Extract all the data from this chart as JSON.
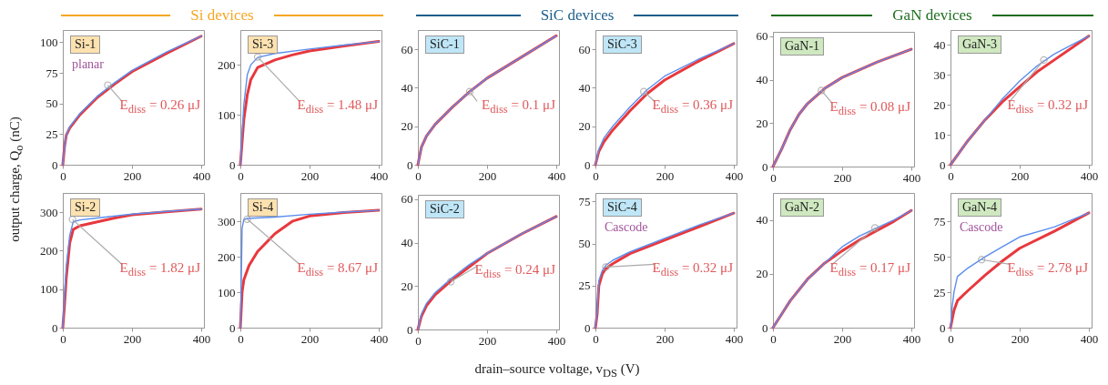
{
  "chart_data": [
    {
      "type": "line",
      "title": "Si devices",
      "ylabel": "output charge, Q$_{o}$ (nC)",
      "xlim": [
        0,
        408
      ],
      "xticks": [
        0,
        200,
        400
      ],
      "ylim": [
        0,
        110
      ],
      "yticks": [
        0,
        25,
        50,
        75,
        100
      ],
      "annotations": [
        "Si-1",
        "planar",
        {
          "text": "E$_{diss}$ = 0.26 μJ",
          "x": 130,
          "y": 65
        }
      ],
      "series": [
        {
          "color": "#e8383d",
          "x": [
            0,
            5,
            10,
            20,
            50,
            100,
            150,
            200,
            300,
            400
          ],
          "values": [
            0,
            15,
            24,
            30,
            41,
            55,
            66,
            76,
            91,
            105
          ]
        },
        {
          "color": "#5b8def",
          "x": [
            0,
            5,
            10,
            20,
            50,
            100,
            150,
            200,
            300,
            400
          ],
          "values": [
            0,
            15,
            24,
            31,
            42,
            56,
            67,
            77,
            92,
            105
          ]
        }
      ]
    },
    {
      "type": "line",
      "xlim": [
        0,
        408
      ],
      "xticks": [
        0,
        200,
        400
      ],
      "ylim": [
        0,
        270
      ],
      "yticks": [
        0,
        100,
        200
      ],
      "annotations": [
        "Si-3",
        {
          "text": "E$_{diss}$ = 1.48 μJ",
          "x": 50,
          "y": 216
        }
      ],
      "series": [
        {
          "color": "#e8383d",
          "x": [
            0,
            10,
            20,
            30,
            50,
            100,
            150,
            200,
            300,
            400
          ],
          "values": [
            0,
            90,
            140,
            170,
            195,
            210,
            220,
            228,
            238,
            247
          ]
        },
        {
          "color": "#5b8def",
          "x": [
            0,
            5,
            10,
            20,
            30,
            50,
            100,
            200,
            300,
            400
          ],
          "values": [
            0,
            60,
            120,
            180,
            200,
            215,
            223,
            232,
            240,
            247
          ]
        }
      ]
    },
    {
      "type": "line",
      "title": "SiC devices",
      "xlim": [
        0,
        408
      ],
      "xticks": [
        0,
        200,
        400
      ],
      "ylim": [
        0,
        70
      ],
      "yticks": [
        0,
        20,
        40,
        60
      ],
      "annotations": [
        "SiC-1",
        {
          "text": "E$_{diss}$ = 0.1 μJ",
          "x": 150,
          "y": 38
        }
      ],
      "series": [
        {
          "color": "#e8383d",
          "x": [
            0,
            10,
            25,
            50,
            100,
            150,
            200,
            300,
            400
          ],
          "values": [
            0,
            9,
            15,
            21,
            30,
            38,
            45,
            56,
            67
          ]
        },
        {
          "color": "#5b8def",
          "x": [
            0,
            10,
            25,
            50,
            100,
            150,
            200,
            300,
            400
          ],
          "values": [
            0,
            9,
            15,
            21,
            30,
            38,
            45,
            56,
            67
          ]
        }
      ]
    },
    {
      "type": "line",
      "xlim": [
        0,
        408
      ],
      "xticks": [
        0,
        200,
        400
      ],
      "ylim": [
        0,
        70
      ],
      "yticks": [
        0,
        20,
        40,
        60
      ],
      "annotations": [
        "SiC-3",
        {
          "text": "E$_{diss}$ = 0.36 μJ",
          "x": 140,
          "y": 38
        }
      ],
      "series": [
        {
          "color": "#e8383d",
          "x": [
            0,
            10,
            25,
            50,
            100,
            150,
            200,
            300,
            400
          ],
          "values": [
            0,
            7,
            12,
            18,
            28,
            37,
            44,
            54,
            63
          ]
        },
        {
          "color": "#5b8def",
          "x": [
            0,
            10,
            25,
            50,
            100,
            150,
            200,
            300,
            400
          ],
          "values": [
            0,
            8,
            14,
            20,
            30,
            39,
            46,
            55,
            63
          ]
        }
      ]
    },
    {
      "type": "line",
      "title": "GaN devices",
      "xlim": [
        0,
        408
      ],
      "xticks": [
        0,
        200,
        400
      ],
      "ylim": [
        0,
        62
      ],
      "yticks": [
        0,
        20,
        40,
        60
      ],
      "annotations": [
        "GaN-1",
        {
          "text": "E$_{diss}$ = 0.08 μJ",
          "x": 140,
          "y": 35
        }
      ],
      "series": [
        {
          "color": "#e8383d",
          "x": [
            0,
            25,
            50,
            75,
            100,
            150,
            200,
            300,
            400
          ],
          "values": [
            0,
            8,
            17,
            24,
            29,
            36,
            41,
            48,
            54
          ]
        },
        {
          "color": "#5b8def",
          "x": [
            0,
            25,
            50,
            75,
            100,
            150,
            200,
            300,
            400
          ],
          "values": [
            0,
            8,
            17,
            24,
            29,
            36,
            41,
            48,
            54
          ]
        }
      ]
    },
    {
      "type": "line",
      "xlim": [
        0,
        408
      ],
      "xticks": [
        0,
        200,
        400
      ],
      "ylim": [
        0,
        45
      ],
      "yticks": [
        0,
        10,
        20,
        30,
        40
      ],
      "annotations": [
        "GaN-3",
        {
          "text": "E$_{diss}$ = 0.32 μJ",
          "x": 270,
          "y": 35
        }
      ],
      "series": [
        {
          "color": "#e8383d",
          "x": [
            0,
            25,
            50,
            100,
            150,
            200,
            250,
            300,
            350,
            400
          ],
          "values": [
            0,
            4,
            8,
            15,
            21,
            26,
            31,
            35,
            39,
            43
          ]
        },
        {
          "color": "#5b8def",
          "x": [
            0,
            25,
            50,
            100,
            150,
            200,
            250,
            300,
            350,
            400
          ],
          "values": [
            0,
            4,
            8,
            15,
            22,
            28,
            33,
            37,
            40,
            43
          ]
        }
      ]
    },
    {
      "type": "line",
      "xlim": [
        0,
        408
      ],
      "xticks": [
        0,
        200,
        400
      ],
      "ylim": [
        0,
        350
      ],
      "yticks": [
        0,
        100,
        200,
        300
      ],
      "annotations": [
        "Si-2",
        {
          "text": "E$_{diss}$ = 1.82 μJ",
          "x": 28,
          "y": 281
        }
      ],
      "series": [
        {
          "color": "#e8383d",
          "x": [
            0,
            5,
            10,
            20,
            30,
            50,
            100,
            150,
            200,
            300,
            400
          ],
          "values": [
            0,
            60,
            130,
            220,
            255,
            265,
            275,
            285,
            293,
            301,
            308
          ]
        },
        {
          "color": "#5b8def",
          "x": [
            0,
            5,
            10,
            20,
            30,
            50,
            100,
            200,
            300,
            400
          ],
          "values": [
            0,
            80,
            160,
            240,
            275,
            280,
            285,
            295,
            302,
            308
          ]
        }
      ]
    },
    {
      "type": "line",
      "xlim": [
        0,
        408
      ],
      "xticks": [
        0,
        200,
        400
      ],
      "ylim": [
        0,
        380
      ],
      "yticks": [
        0,
        100,
        200,
        300
      ],
      "annotations": [
        "Si-4",
        {
          "text": "E$_{diss}$ = 8.67 μJ",
          "x": 20,
          "y": 306
        }
      ],
      "series": [
        {
          "color": "#e8383d",
          "x": [
            0,
            5,
            10,
            25,
            50,
            100,
            150,
            200,
            300,
            400
          ],
          "values": [
            0,
            100,
            135,
            175,
            215,
            265,
            300,
            315,
            325,
            331
          ]
        },
        {
          "color": "#5b8def",
          "x": [
            0,
            3,
            5,
            10,
            20,
            100,
            200,
            300,
            400
          ],
          "values": [
            0,
            150,
            280,
            305,
            308,
            312,
            320,
            326,
            331
          ]
        }
      ]
    },
    {
      "type": "line",
      "xlabel": "drain–source voltage, v$_{DS}$ (V)",
      "xlim": [
        0,
        408
      ],
      "xticks": [
        0,
        200,
        400
      ],
      "ylim": [
        0,
        62
      ],
      "yticks": [
        0,
        20,
        40,
        60
      ],
      "annotations": [
        "SiC-2",
        {
          "text": "E$_{diss}$ = 0.24 μJ",
          "x": 95,
          "y": 22
        }
      ],
      "series": [
        {
          "color": "#e8383d",
          "x": [
            0,
            10,
            25,
            50,
            100,
            150,
            200,
            300,
            400
          ],
          "values": [
            0,
            6,
            11,
            16,
            23,
            29,
            35,
            44,
            52
          ]
        },
        {
          "color": "#5b8def",
          "x": [
            0,
            10,
            25,
            50,
            100,
            150,
            200,
            300,
            400
          ],
          "values": [
            0,
            7,
            12,
            17,
            24,
            30,
            35,
            44,
            52
          ]
        }
      ]
    },
    {
      "type": "line",
      "xlim": [
        0,
        408
      ],
      "xticks": [
        0,
        200,
        400
      ],
      "ylim": [
        0,
        80
      ],
      "yticks": [
        0,
        25,
        50,
        75
      ],
      "annotations": [
        "SiC-4",
        "Cascode",
        {
          "text": "E$_{diss}$ = 0.32 μJ",
          "x": 30,
          "y": 36
        }
      ],
      "series": [
        {
          "color": "#e8383d",
          "x": [
            0,
            5,
            10,
            20,
            30,
            50,
            100,
            200,
            300,
            400
          ],
          "values": [
            0,
            8,
            25,
            32,
            35,
            38,
            44,
            52,
            60,
            68
          ]
        },
        {
          "color": "#5b8def",
          "x": [
            0,
            5,
            10,
            20,
            30,
            50,
            100,
            200,
            300,
            400
          ],
          "values": [
            0,
            10,
            28,
            34,
            37,
            40,
            45,
            53,
            61,
            68
          ]
        }
      ]
    },
    {
      "type": "line",
      "xlim": [
        0,
        408
      ],
      "xticks": [
        0,
        200,
        400
      ],
      "ylim": [
        0,
        50
      ],
      "yticks": [
        0,
        20,
        40
      ],
      "annotations": [
        "GaN-2",
        {
          "text": "E$_{diss}$ = 0.17 μJ",
          "x": 295,
          "y": 37
        }
      ],
      "series": [
        {
          "color": "#e8383d",
          "x": [
            0,
            25,
            50,
            100,
            150,
            200,
            250,
            300,
            350,
            400
          ],
          "values": [
            0,
            5,
            10,
            18,
            24,
            28.5,
            32.5,
            36,
            39.5,
            43.5
          ]
        },
        {
          "color": "#5b8def",
          "x": [
            0,
            25,
            50,
            100,
            150,
            200,
            250,
            300,
            350,
            400
          ],
          "values": [
            0,
            5,
            10,
            18,
            24,
            30,
            34,
            37,
            40,
            43.5
          ]
        }
      ]
    },
    {
      "type": "line",
      "xlim": [
        0,
        408
      ],
      "xticks": [
        0,
        200,
        400
      ],
      "ylim": [
        0,
        95
      ],
      "yticks": [
        0,
        25,
        50,
        75
      ],
      "annotations": [
        "GaN-4",
        "Cascode",
        {
          "text": "E$_{diss}$ = 2.78 μJ",
          "x": 90,
          "y": 48
        }
      ],
      "series": [
        {
          "color": "#e8383d",
          "x": [
            0,
            10,
            20,
            50,
            100,
            150,
            200,
            300,
            400
          ],
          "values": [
            0,
            12,
            19,
            26,
            37,
            47,
            56,
            68,
            81
          ]
        },
        {
          "color": "#5b8def",
          "x": [
            0,
            5,
            10,
            20,
            50,
            100,
            150,
            200,
            300,
            400
          ],
          "values": [
            0,
            15,
            25,
            36,
            42,
            50,
            57,
            64,
            71,
            81
          ]
        }
      ]
    }
  ]
}
